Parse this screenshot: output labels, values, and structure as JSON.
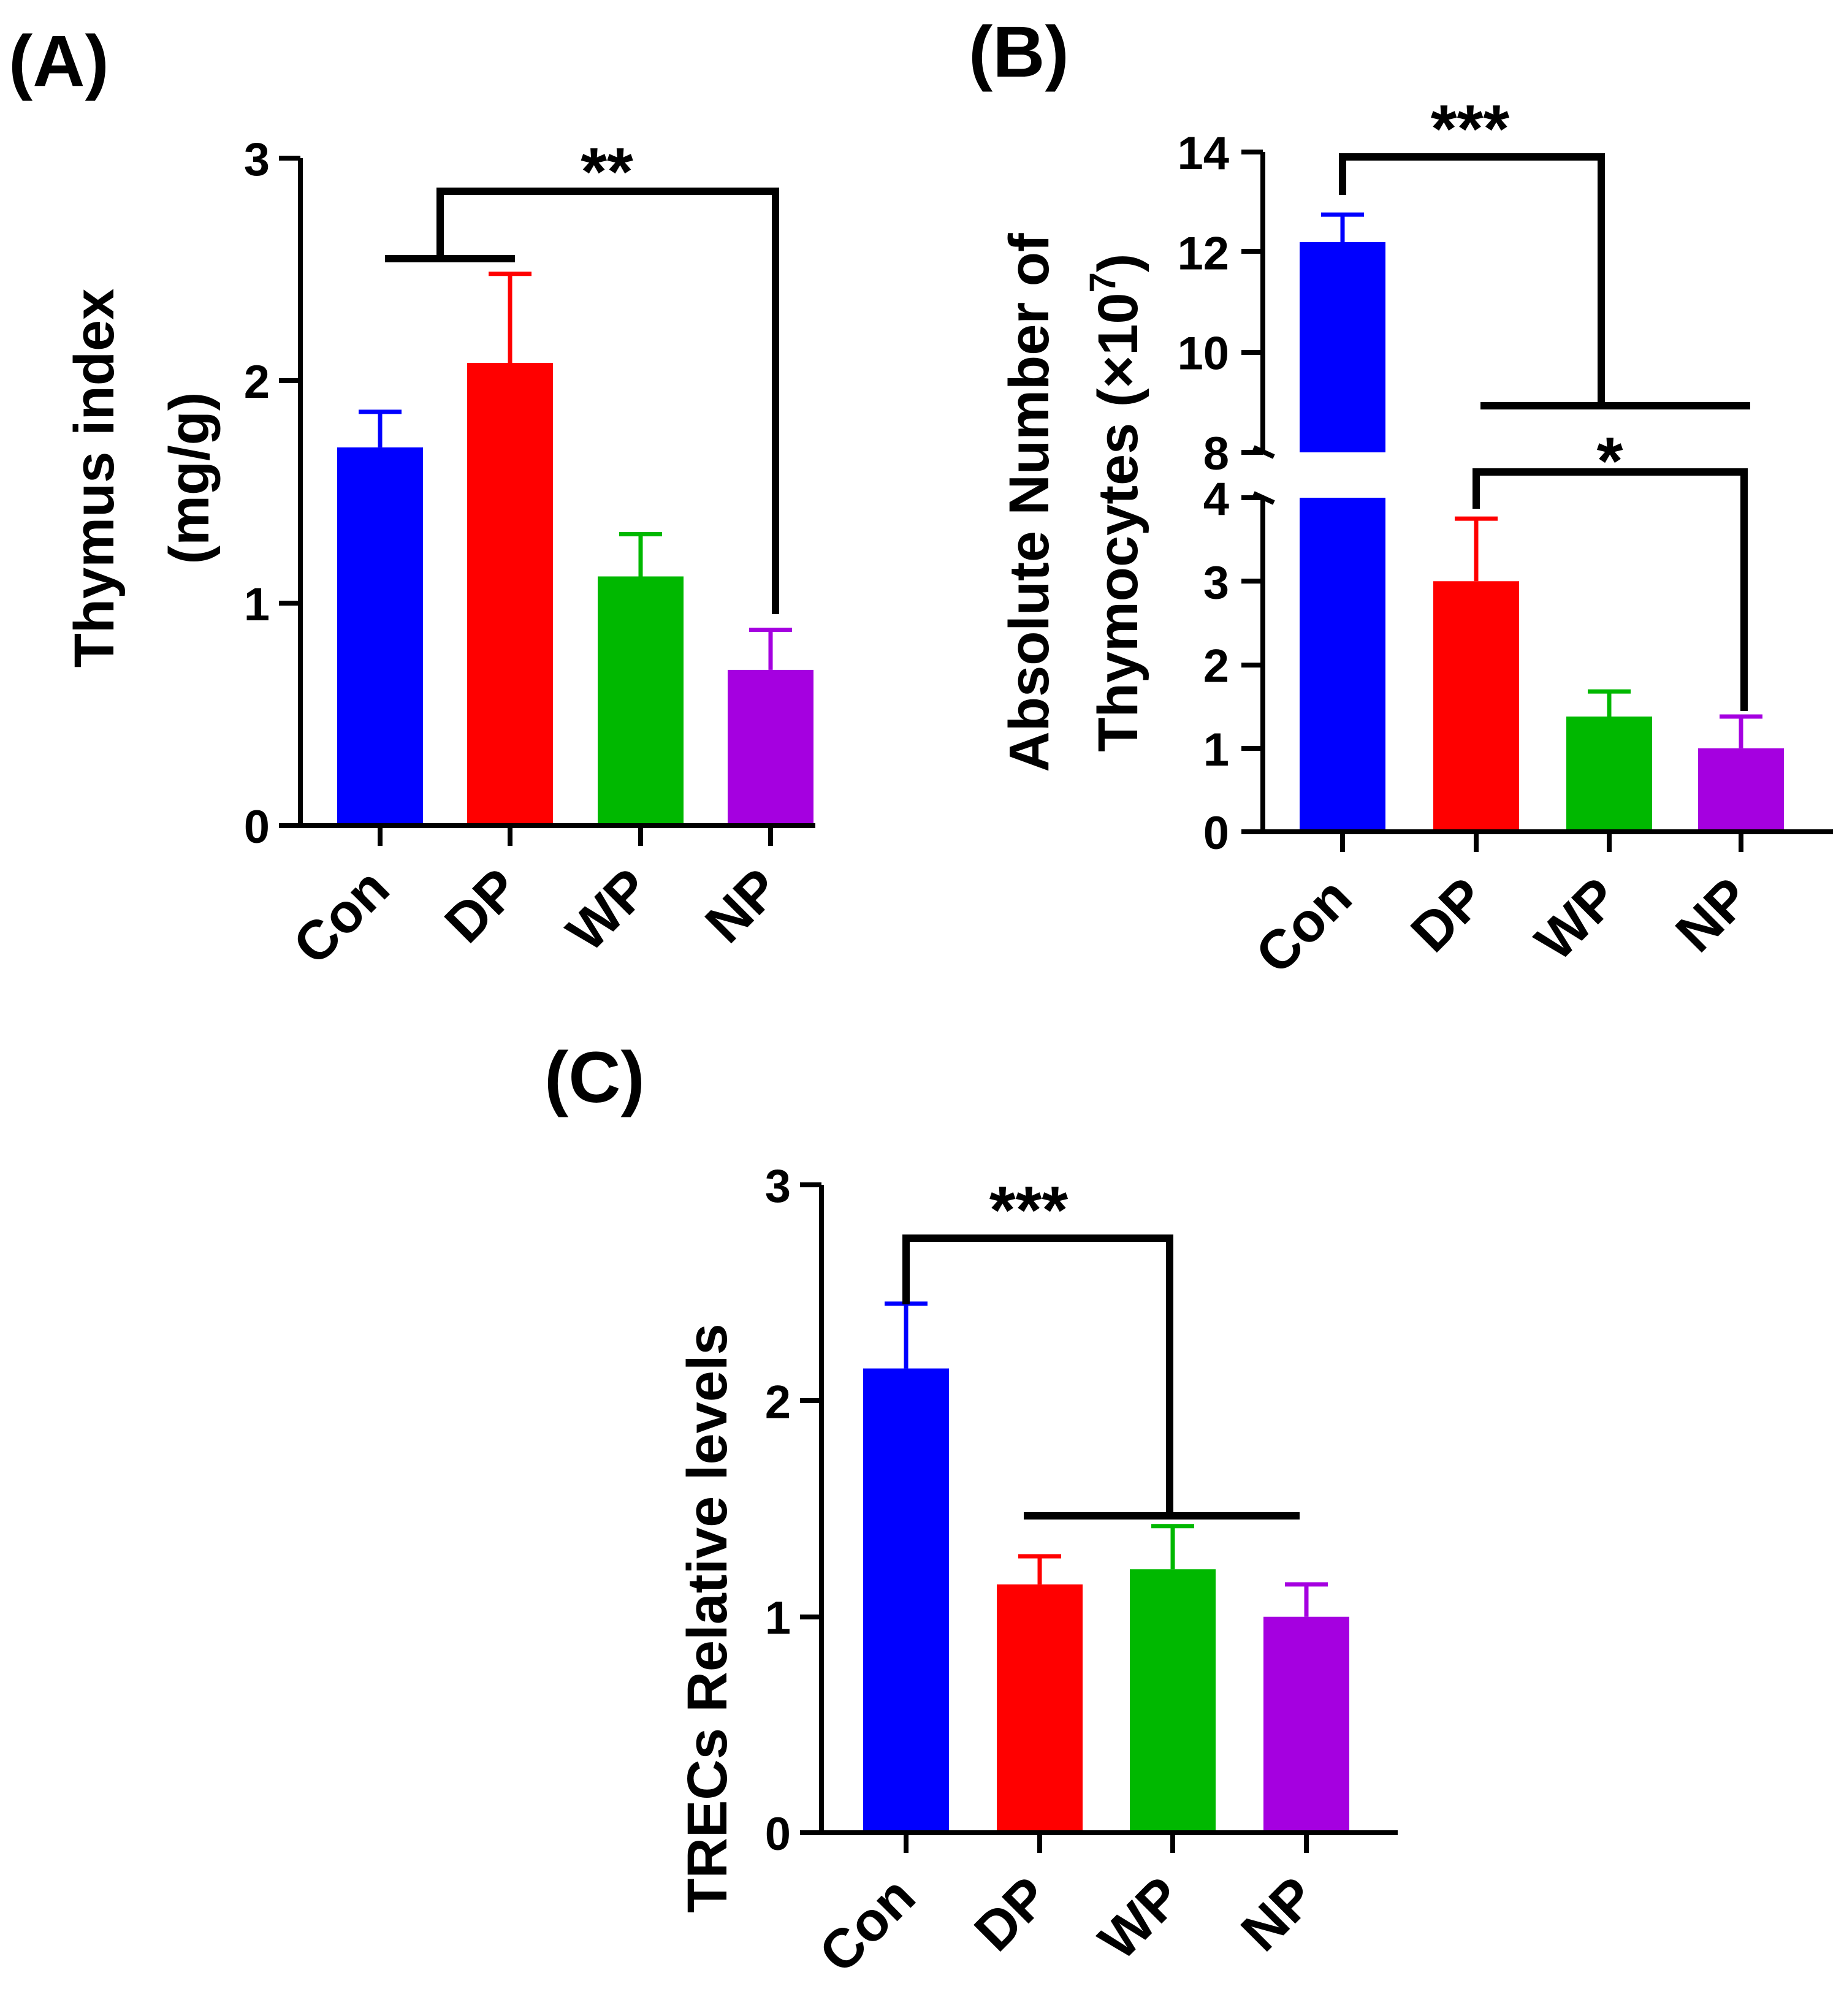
{
  "colors": {
    "Con": "#0000ff",
    "DP": "#ff0000",
    "WP": "#00b800",
    "NP": "#a500e0",
    "axis": "#000000"
  },
  "chart_data": [
    {
      "panel": "(A)",
      "type": "bar",
      "ylabel_line1": "Thymus index",
      "ylabel_line2": "(mg/g)",
      "categories": [
        "Con",
        "DP",
        "WP",
        "NP"
      ],
      "values": [
        1.7,
        2.08,
        1.12,
        0.7
      ],
      "errors": [
        0.16,
        0.4,
        0.19,
        0.18
      ],
      "ylim": [
        0,
        3
      ],
      "yticks": [
        "0",
        "1",
        "2",
        "3"
      ],
      "significance": [
        {
          "label": "**",
          "from_group": [
            "Con",
            "DP"
          ],
          "to": "NP"
        }
      ]
    },
    {
      "panel": "(B)",
      "type": "bar",
      "broken_axis": true,
      "ylabel_line1": "Absolute Number of",
      "ylabel_line2_text": "Thymocytes (×10",
      "ylabel_superscript": "7",
      "ylabel_close": ")",
      "categories": [
        "Con",
        "DP",
        "WP",
        "NP"
      ],
      "values": [
        12.2,
        3.0,
        1.38,
        1.0
      ],
      "errors": [
        0.55,
        0.75,
        0.3,
        0.38
      ],
      "lower_ylim": [
        0,
        4
      ],
      "upper_ylim": [
        8,
        14
      ],
      "lower_yticks": [
        "0",
        "1",
        "2",
        "3",
        "4"
      ],
      "upper_yticks": [
        "8",
        "10",
        "12",
        "14"
      ],
      "significance": [
        {
          "label": "***",
          "from": "Con",
          "to_group": [
            "DP",
            "WP",
            "NP"
          ]
        },
        {
          "label": "*",
          "from": "DP",
          "to": "NP"
        }
      ]
    },
    {
      "panel": "(C)",
      "type": "bar",
      "ylabel": "TRECs Relative levels",
      "categories": [
        "Con",
        "DP",
        "WP",
        "NP"
      ],
      "values": [
        2.15,
        1.15,
        1.22,
        1.0
      ],
      "errors": [
        0.3,
        0.13,
        0.2,
        0.15
      ],
      "ylim": [
        0,
        3
      ],
      "yticks": [
        "0",
        "1",
        "2",
        "3"
      ],
      "significance": [
        {
          "label": "***",
          "from": "Con",
          "to_group": [
            "DP",
            "WP",
            "NP"
          ]
        }
      ]
    }
  ]
}
